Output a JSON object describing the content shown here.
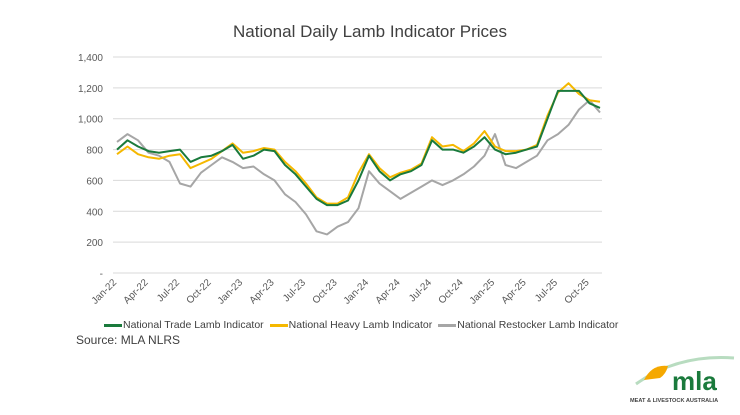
{
  "chart_data": {
    "type": "line",
    "title": "National Daily Lamb Indicator Prices",
    "xlabel": "",
    "ylabel": "",
    "ylim": [
      0,
      1400
    ],
    "yticks": [
      "-",
      "200",
      "400",
      "600",
      "800",
      "1,000",
      "1,200",
      "1,400"
    ],
    "ytick_values": [
      0,
      200,
      400,
      600,
      800,
      1000,
      1200,
      1400
    ],
    "grid": true,
    "legend_placement": "bottom",
    "x_tick_labels": [
      "Jan-22",
      "Apr-22",
      "Jul-22",
      "Oct-22",
      "Jan-23",
      "Apr-23",
      "Jul-23",
      "Oct-23",
      "Jan-24",
      "Apr-24",
      "Jul-24",
      "Oct-24",
      "Jan-25",
      "Apr-25",
      "Jul-25",
      "Oct-25"
    ],
    "x": [
      "2022-01",
      "2022-02",
      "2022-03",
      "2022-04",
      "2022-05",
      "2022-06",
      "2022-07",
      "2022-08",
      "2022-09",
      "2022-10",
      "2022-11",
      "2022-12",
      "2023-01",
      "2023-02",
      "2023-03",
      "2023-04",
      "2023-05",
      "2023-06",
      "2023-07",
      "2023-08",
      "2023-09",
      "2023-10",
      "2023-11",
      "2023-12",
      "2024-01",
      "2024-02",
      "2024-03",
      "2024-04",
      "2024-05",
      "2024-06",
      "2024-07",
      "2024-08",
      "2024-09",
      "2024-10",
      "2024-11",
      "2024-12",
      "2025-01",
      "2025-02",
      "2025-03",
      "2025-04",
      "2025-05",
      "2025-06",
      "2025-07",
      "2025-08",
      "2025-09",
      "2025-10",
      "2025-11"
    ],
    "series": [
      {
        "name": "National Trade Lamb Indicator",
        "color": "#1a7a3c",
        "values": [
          800,
          860,
          820,
          790,
          780,
          790,
          800,
          720,
          750,
          760,
          790,
          830,
          740,
          760,
          800,
          790,
          700,
          640,
          560,
          480,
          440,
          440,
          470,
          600,
          760,
          660,
          600,
          640,
          660,
          700,
          860,
          800,
          800,
          780,
          820,
          880,
          800,
          770,
          780,
          800,
          820,
          1000,
          1180,
          1180,
          1180,
          1100,
          1070
        ]
      },
      {
        "name": "National Heavy Lamb Indicator",
        "color": "#f5b800",
        "values": [
          770,
          820,
          770,
          750,
          740,
          760,
          770,
          680,
          710,
          740,
          790,
          840,
          780,
          790,
          810,
          800,
          720,
          660,
          580,
          490,
          450,
          450,
          490,
          650,
          770,
          680,
          620,
          650,
          670,
          710,
          880,
          820,
          830,
          790,
          840,
          920,
          820,
          790,
          790,
          800,
          830,
          1020,
          1170,
          1230,
          1160,
          1120,
          1110
        ]
      },
      {
        "name": "National Restocker Lamb Indicator",
        "color": "#a6a6a6",
        "values": [
          850,
          900,
          860,
          780,
          760,
          720,
          580,
          560,
          650,
          700,
          750,
          720,
          680,
          690,
          640,
          600,
          510,
          460,
          380,
          270,
          250,
          300,
          330,
          420,
          660,
          580,
          530,
          480,
          520,
          560,
          600,
          570,
          600,
          640,
          690,
          760,
          900,
          700,
          680,
          720,
          760,
          860,
          900,
          960,
          1060,
          1120,
          1040
        ]
      }
    ]
  },
  "source": "Source: MLA NLRS",
  "logo": {
    "text": "mla",
    "subtext": "MEAT & LIVESTOCK AUSTRALIA"
  }
}
